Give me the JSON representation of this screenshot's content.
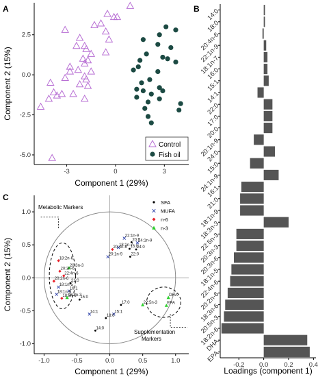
{
  "panels": {
    "a": "A",
    "b": "B",
    "c": "C"
  },
  "chart_data": [
    {
      "type": "scatter",
      "xlabel": "Component 1 (29%)",
      "ylabel": "Component 2 (15%)",
      "xlim": [
        -5,
        4.5
      ],
      "ylim": [
        -5.6,
        4.5
      ],
      "xticks": [
        "-3",
        "0",
        "3"
      ],
      "yticks": [
        "2.5",
        "0.0",
        "-2.5",
        "-5.0"
      ],
      "ytick_values": [
        2.5,
        0.0,
        -2.5,
        -5.0
      ],
      "xtick_values": [
        -3,
        0,
        3
      ],
      "legend_position": "bottom-right",
      "series": [
        {
          "name": "Control",
          "marker": "open-triangle",
          "color": "#b86fd4",
          "x": [
            0.9,
            -0.5,
            -0.1,
            0.1,
            -0.9,
            -1.3,
            -0.6,
            -0.4,
            -3.1,
            -2.2,
            -2.4,
            -1.9,
            -1.8,
            -1.5,
            -0.6,
            -2.0,
            -1.7,
            -1.9,
            -2.8,
            -1.5,
            -2.3,
            -2.8,
            -1.9,
            -3.1,
            -1.8,
            -2.2,
            -4.0,
            -1.7,
            -2.6,
            -3.3,
            -3.8,
            -4.1,
            -3.6,
            -1.9,
            -4.6,
            -3.9
          ],
          "y": [
            4.3,
            3.8,
            3.6,
            3.6,
            3.2,
            3.1,
            2.7,
            2.2,
            2.8,
            2.3,
            1.8,
            1.8,
            1.6,
            1.3,
            1.4,
            1.0,
            0.9,
            0.7,
            0.5,
            0.2,
            0.3,
            0.2,
            -0.1,
            -0.2,
            -0.3,
            -0.6,
            -0.5,
            -0.7,
            -1.2,
            -1.2,
            -1.1,
            -1.5,
            -1.3,
            -1.5,
            -2.0,
            -5.2
          ]
        },
        {
          "name": "Fish oil",
          "marker": "filled-circle",
          "color": "#1c4a43",
          "x": [
            3.1,
            3.7,
            2.7,
            1.7,
            2.6,
            3.4,
            1.9,
            2.9,
            3.2,
            1.5,
            3.7,
            1.4,
            1.1,
            2.6,
            2.1,
            1.6,
            2.7,
            1.3,
            2.9,
            1.7,
            2.2,
            1.3,
            2.7,
            2.0,
            4.0,
            1.8,
            3.9,
            2.0,
            2.2
          ],
          "y": [
            3.0,
            2.8,
            2.5,
            2.2,
            1.9,
            1.7,
            1.3,
            1.1,
            1.0,
            0.9,
            0.8,
            0.5,
            0.3,
            0.2,
            -0.3,
            -0.5,
            -0.8,
            -0.9,
            -1.0,
            -1.0,
            -1.2,
            -1.4,
            -1.5,
            -1.7,
            -1.8,
            -2.1,
            -2.2,
            -2.6,
            -3.0
          ]
        }
      ]
    },
    {
      "type": "bar",
      "orientation": "horizontal",
      "xlabel": "Loadings (component 1)",
      "xlim": [
        -0.35,
        0.42
      ],
      "xticks": [
        "-0.2",
        "0.0",
        "0.2",
        "0.4"
      ],
      "xtick_values": [
        -0.2,
        0.0,
        0.2,
        0.4
      ],
      "categories": [
        "14:0",
        "18:0",
        "20:4n-6",
        "22:1n-9",
        "18:1n-7",
        "16:0",
        "15:1",
        "14:1",
        "22:0",
        "17:0",
        "20:0",
        "20:1n-9",
        "24:0",
        "15:0",
        "24:1n-9",
        "16:1",
        "21:0",
        "18:1n-9",
        "18:3n-3",
        "22:5n-3",
        "20:3n-3",
        "20:3n-6",
        "18:1n-5",
        "22:4n-6",
        "20:2n-6",
        "18:3n-6",
        "20:5n-3",
        "18:2n-6",
        "DHA",
        "EPA"
      ],
      "values": [
        0.01,
        0.01,
        -0.01,
        0.02,
        0.03,
        0.03,
        0.04,
        -0.05,
        0.07,
        0.07,
        0.07,
        -0.08,
        0.09,
        -0.11,
        0.12,
        -0.18,
        -0.19,
        -0.19,
        0.2,
        -0.22,
        -0.22,
        -0.24,
        -0.26,
        -0.27,
        -0.29,
        -0.31,
        -0.32,
        -0.34,
        0.35,
        0.37
      ],
      "color": "#555555"
    },
    {
      "type": "scatter",
      "xlabel": "Component 1 (29%)",
      "ylabel": "Component 2 (15%)",
      "xlim": [
        -1.15,
        1.2
      ],
      "ylim": [
        -1.15,
        1.25
      ],
      "xticks": [
        "-1.0",
        "-0.5",
        "0.0",
        "0.5",
        "1.0"
      ],
      "xtick_values": [
        -1.0,
        -0.5,
        0.0,
        0.5,
        1.0
      ],
      "yticks": [
        "1.0",
        "0.5",
        "0.0",
        "-0.5",
        "-1.0"
      ],
      "ytick_values": [
        1.0,
        0.5,
        0.0,
        -0.5,
        -1.0
      ],
      "legend_position": "top-right",
      "series": [
        {
          "name": "SFA",
          "marker": "dot",
          "color": "#000000"
        },
        {
          "name": "MUFA",
          "marker": "cross",
          "color": "#2b3fa8"
        },
        {
          "name": "n-6",
          "marker": "diamond",
          "color": "#e8202a"
        },
        {
          "name": "n-3",
          "marker": "triangle",
          "color": "#2ed12e"
        }
      ],
      "points": [
        {
          "label": "22:1n-9",
          "s": 1,
          "x": 0.22,
          "y": 0.6
        },
        {
          "label": "20:0",
          "s": 0,
          "x": 0.33,
          "y": 0.54
        },
        {
          "label": "24:1n-9",
          "s": 1,
          "x": 0.42,
          "y": 0.53
        },
        {
          "label": "18:1n-7",
          "s": 1,
          "x": 0.13,
          "y": 0.46
        },
        {
          "label": "20:4n-6",
          "s": 2,
          "x": 0.04,
          "y": 0.43
        },
        {
          "label": "16:0",
          "s": 0,
          "x": 0.3,
          "y": 0.44
        },
        {
          "label": "24:0",
          "s": 0,
          "x": 0.4,
          "y": 0.43
        },
        {
          "label": "20:1n-9",
          "s": 1,
          "x": -0.03,
          "y": 0.32
        },
        {
          "label": "22:0",
          "s": 0,
          "x": 0.31,
          "y": 0.32
        },
        {
          "label": "18:2n-6",
          "s": 2,
          "x": -0.78,
          "y": 0.26
        },
        {
          "label": "20:3n-3",
          "s": 3,
          "x": -0.62,
          "y": 0.15
        },
        {
          "label": "20:3n-6",
          "s": 2,
          "x": -0.76,
          "y": 0.1
        },
        {
          "label": "22:4n-6",
          "s": 2,
          "x": -0.7,
          "y": 0.03
        },
        {
          "label": "21:0",
          "s": 0,
          "x": -0.6,
          "y": -0.08
        },
        {
          "label": "20:2n-6",
          "s": 2,
          "x": -0.85,
          "y": -0.05
        },
        {
          "label": "18:1n-5",
          "s": 1,
          "x": -0.78,
          "y": -0.14
        },
        {
          "label": "16:1",
          "s": 1,
          "x": -0.62,
          "y": -0.2
        },
        {
          "label": "15:0",
          "s": 0,
          "x": -0.46,
          "y": -0.33
        },
        {
          "label": "17:0",
          "s": 0,
          "x": 0.17,
          "y": -0.41
        },
        {
          "label": "18:1n-9",
          "s": 1,
          "x": -0.81,
          "y": -0.25
        },
        {
          "label": "18:3n-6",
          "s": 2,
          "x": -0.73,
          "y": -0.31
        },
        {
          "label": "18:3n-3",
          "s": 3,
          "x": -0.65,
          "y": -0.3
        },
        {
          "label": "22:5n-3",
          "s": 3,
          "x": 0.5,
          "y": -0.41
        },
        {
          "label": "15:1",
          "s": 1,
          "x": 0.06,
          "y": -0.55
        },
        {
          "label": "18:0",
          "s": 0,
          "x": -0.06,
          "y": -0.61
        },
        {
          "label": "14:1",
          "s": 1,
          "x": -0.31,
          "y": -0.55
        },
        {
          "label": "14:0",
          "s": 0,
          "x": -0.22,
          "y": -0.8
        },
        {
          "label": "DHA",
          "s": 3,
          "x": 0.89,
          "y": -0.3
        },
        {
          "label": "EPA",
          "s": 3,
          "x": 0.86,
          "y": -0.42
        }
      ],
      "annotations": [
        "Metabolic Markers",
        "Supplementation",
        "Markers"
      ]
    }
  ]
}
